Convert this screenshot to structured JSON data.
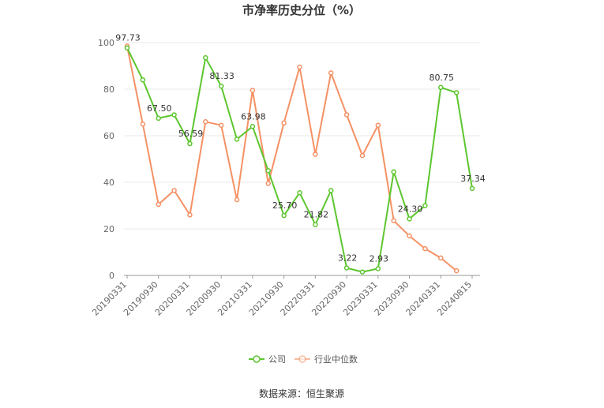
{
  "chart_data": {
    "type": "line",
    "title": "市净率历史分位（%）",
    "source": "数据来源：恒生聚源",
    "ylim": [
      0,
      100
    ],
    "yticks": [
      0,
      20,
      40,
      60,
      80,
      100
    ],
    "x_tick_labels": [
      "20190331",
      "20190930",
      "20200331",
      "20200930",
      "20210331",
      "20210930",
      "20220331",
      "20220930",
      "20230331",
      "20230930",
      "20240331",
      "20240815"
    ],
    "grid": true,
    "legend_position": "bottom",
    "colors": {
      "company": "#5dc62f",
      "industry": "#f59164"
    },
    "series": [
      {
        "name": "公司",
        "values": [
          97.73,
          84.0,
          67.5,
          69.0,
          56.59,
          93.5,
          81.33,
          58.5,
          63.98,
          45.0,
          25.7,
          35.5,
          21.82,
          36.5,
          3.22,
          1.5,
          2.93,
          44.5,
          24.3,
          30.0,
          80.75,
          78.5,
          37.34
        ],
        "labels": [
          "97.73",
          "",
          "67.50",
          "",
          "56.59",
          "",
          "81.33",
          "",
          "63.98",
          "",
          "25.70",
          "",
          "21.82",
          "",
          "3.22",
          "",
          "2.93",
          "",
          "24.30",
          "",
          "80.75",
          "",
          "37.34"
        ]
      },
      {
        "name": "行业中位数",
        "values": [
          98.5,
          65.0,
          30.5,
          36.5,
          26.0,
          66.0,
          64.5,
          32.5,
          79.5,
          39.5,
          65.5,
          89.5,
          52.0,
          87.0,
          69.0,
          51.5,
          64.5,
          23.5,
          17.0,
          11.5,
          7.5,
          2.0,
          null
        ]
      }
    ]
  }
}
